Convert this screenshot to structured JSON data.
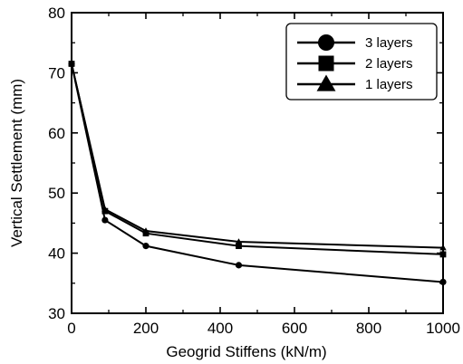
{
  "chart_data": {
    "type": "line",
    "xlabel": "Geogrid Stiffens (kN/m)",
    "ylabel": "Vertical Settlement (mm)",
    "xlim": [
      0,
      1000
    ],
    "ylim": [
      30,
      80
    ],
    "xticks": [
      0,
      200,
      400,
      600,
      800,
      1000
    ],
    "yticks": [
      30,
      40,
      50,
      60,
      70,
      80
    ],
    "grid": false,
    "legend_position": "top-right",
    "series": [
      {
        "name": "3 layers",
        "marker": "circle",
        "x": [
          0,
          90,
          200,
          450,
          1000
        ],
        "y": [
          71.5,
          45.5,
          41.2,
          38.0,
          35.2
        ]
      },
      {
        "name": "2 layers",
        "marker": "square",
        "x": [
          0,
          90,
          200,
          450,
          1000
        ],
        "y": [
          71.5,
          47.0,
          43.3,
          41.2,
          39.8
        ]
      },
      {
        "name": "1 layers",
        "marker": "triangle",
        "x": [
          0,
          90,
          200,
          450,
          1000
        ],
        "y": [
          71.5,
          47.3,
          43.7,
          41.9,
          40.9
        ]
      }
    ]
  }
}
